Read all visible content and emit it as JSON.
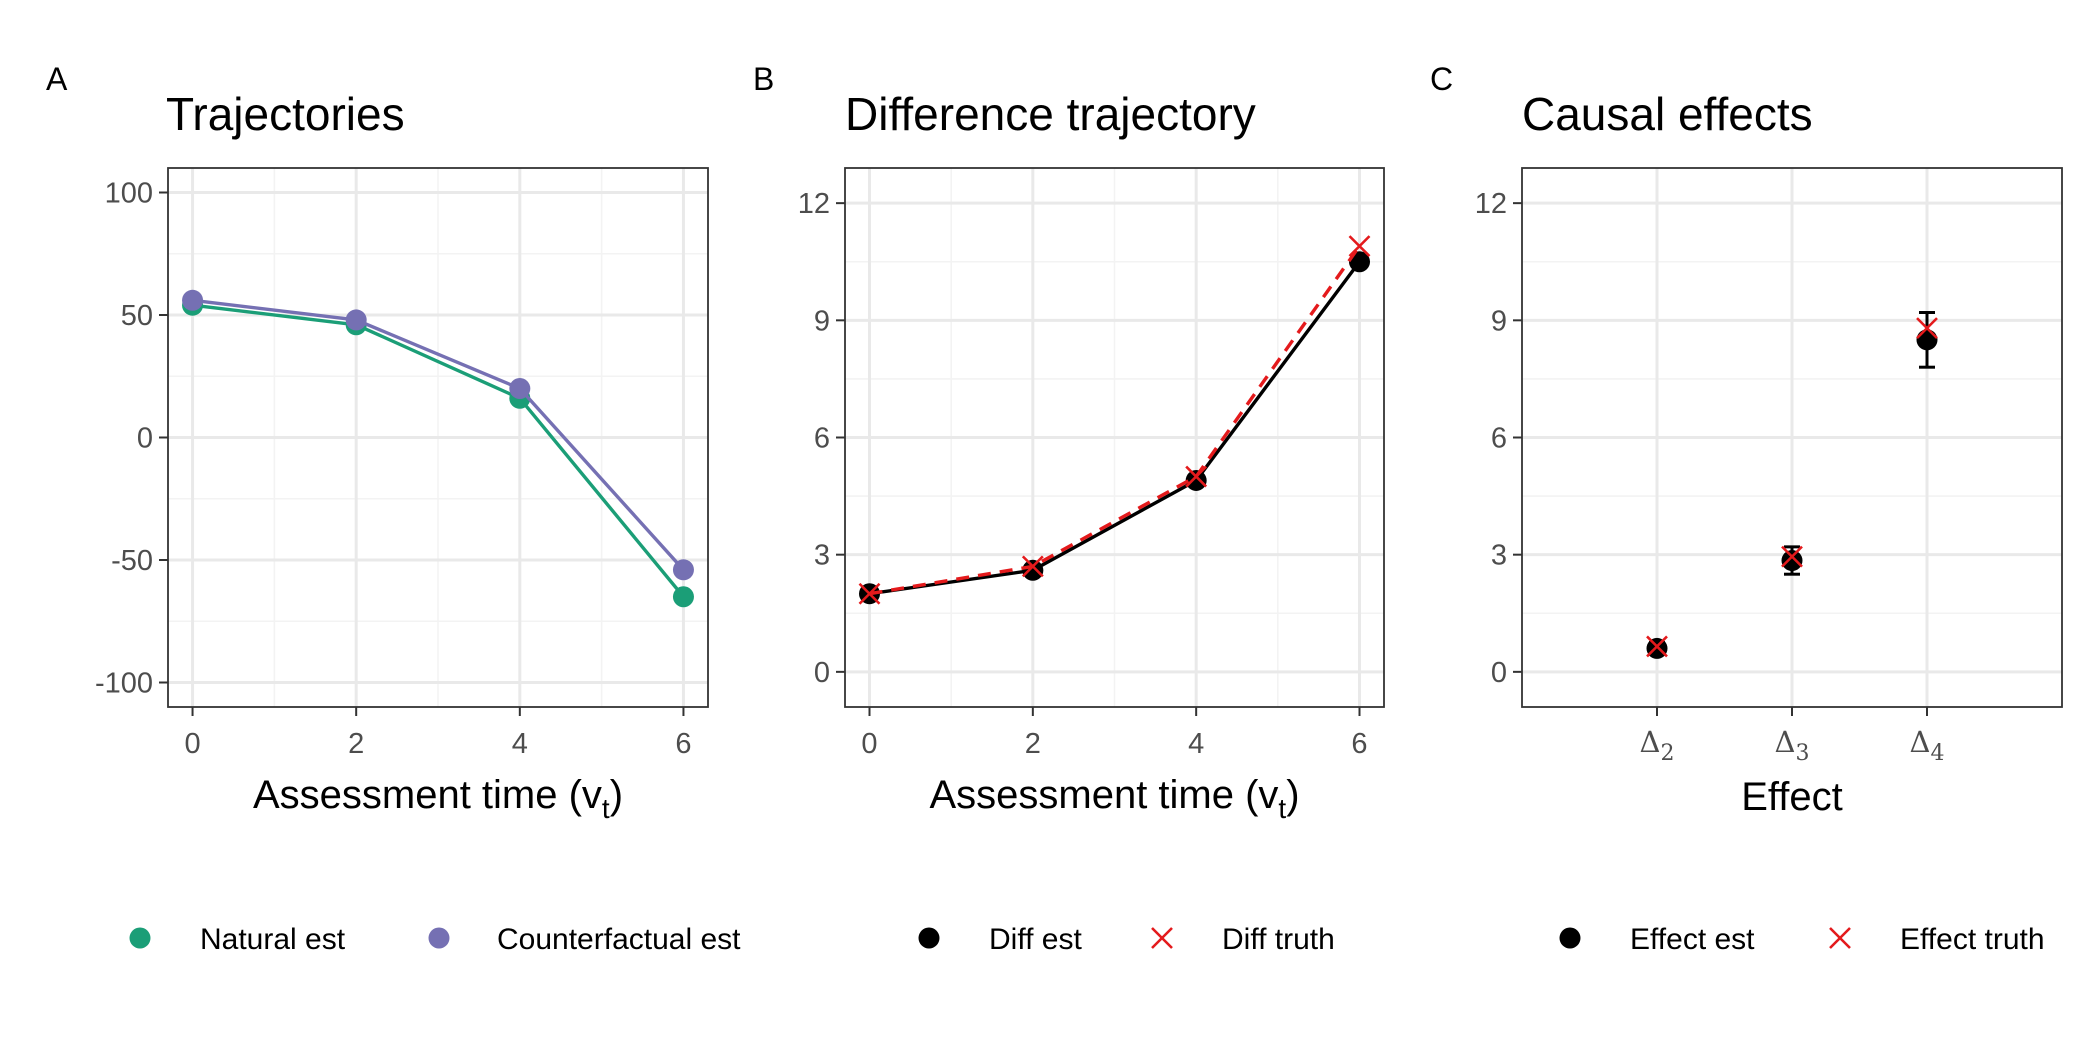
{
  "colors": {
    "natural": "#1b9e77",
    "counterfactual": "#7570b3",
    "estimate": "#000000",
    "truth": "#e41a1c"
  },
  "chart_data": [
    {
      "panel": "A",
      "type": "line",
      "title": "Trajectories",
      "xlabel": "Assessment time (v",
      "xlabel_sub": "t",
      "xlabel_suffix": ")",
      "ylabel": "",
      "xlim": [
        -0.3,
        6.3
      ],
      "ylim": [
        -110,
        110
      ],
      "xticks": [
        0,
        2,
        4,
        6
      ],
      "yticks": [
        -100,
        -50,
        0,
        50,
        100
      ],
      "ytick_labels": [
        "-100",
        "-50",
        "0",
        "50",
        "100"
      ],
      "x": [
        0,
        2,
        4,
        6
      ],
      "series": [
        {
          "name": "Natural est",
          "color_key": "natural",
          "values": [
            54,
            46,
            16,
            -65
          ],
          "marker": "point",
          "line": "solid"
        },
        {
          "name": "Counterfactual est",
          "color_key": "counterfactual",
          "values": [
            56,
            48,
            20,
            -54
          ],
          "marker": "point",
          "line": "solid"
        }
      ]
    },
    {
      "panel": "B",
      "type": "line",
      "title": "Difference trajectory",
      "xlabel": "Assessment time (v",
      "xlabel_sub": "t",
      "xlabel_suffix": ")",
      "ylabel": "",
      "xlim": [
        -0.3,
        6.3
      ],
      "ylim": [
        -0.9,
        12.9
      ],
      "xticks": [
        0,
        2,
        4,
        6
      ],
      "yticks": [
        0,
        3,
        6,
        9,
        12
      ],
      "ytick_labels": [
        "0",
        "3",
        "6",
        "9",
        "12"
      ],
      "x": [
        0,
        2,
        4,
        6
      ],
      "series": [
        {
          "name": "Diff est",
          "color_key": "estimate",
          "values": [
            2.0,
            2.6,
            4.9,
            10.5
          ],
          "marker": "point",
          "line": "solid"
        },
        {
          "name": "Diff truth",
          "color_key": "truth",
          "values": [
            2.0,
            2.7,
            5.0,
            10.9
          ],
          "marker": "cross",
          "line": "dashed"
        }
      ]
    },
    {
      "panel": "C",
      "type": "scatter",
      "title": "Causal effects",
      "xlabel": "Effect",
      "ylabel": "",
      "ylim": [
        -0.9,
        12.9
      ],
      "yticks": [
        0,
        3,
        6,
        9,
        12
      ],
      "ytick_labels": [
        "0",
        "3",
        "6",
        "9",
        "12"
      ],
      "categories": [
        {
          "base": "Δ",
          "sub": "2"
        },
        {
          "base": "Δ",
          "sub": "3"
        },
        {
          "base": "Δ",
          "sub": "4"
        }
      ],
      "series": [
        {
          "name": "Effect est",
          "color_key": "estimate",
          "values": [
            0.6,
            2.85,
            8.5
          ],
          "lower": [
            0.45,
            2.5,
            7.8
          ],
          "upper": [
            0.75,
            3.2,
            9.2
          ],
          "marker": "point"
        },
        {
          "name": "Effect truth",
          "color_key": "truth",
          "values": [
            0.65,
            2.95,
            8.8
          ],
          "marker": "cross"
        }
      ]
    }
  ],
  "legends": [
    {
      "items": [
        {
          "label": "Natural est",
          "color_key": "natural",
          "marker": "point"
        },
        {
          "label": "Counterfactual est",
          "color_key": "counterfactual",
          "marker": "point"
        }
      ]
    },
    {
      "items": [
        {
          "label": "Diff est",
          "color_key": "estimate",
          "marker": "point"
        },
        {
          "label": "Diff truth",
          "color_key": "truth",
          "marker": "cross"
        }
      ]
    },
    {
      "items": [
        {
          "label": "Effect est",
          "color_key": "estimate",
          "marker": "point"
        },
        {
          "label": "Effect truth",
          "color_key": "truth",
          "marker": "cross"
        }
      ]
    }
  ]
}
